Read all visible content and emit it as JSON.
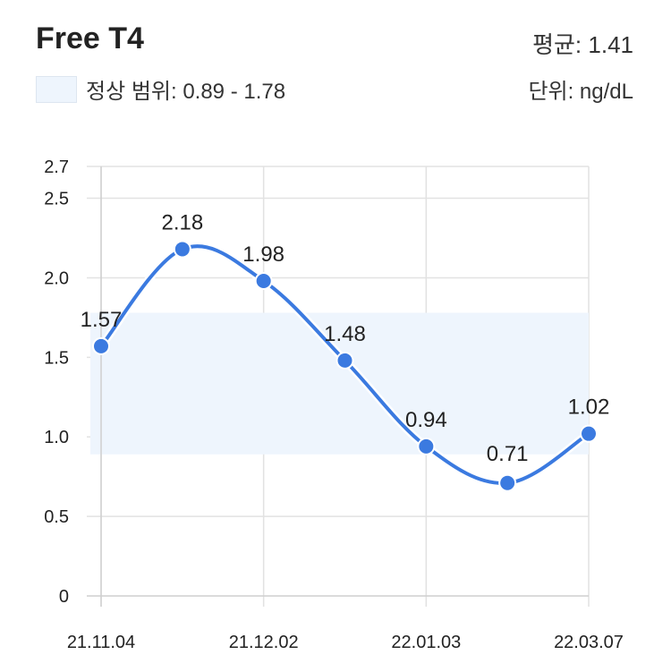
{
  "header": {
    "title": "Free T4",
    "legend_label": "정상 범위: 0.89 - 1.78",
    "average_label": "평균: 1.41",
    "unit_label": "단위: ng/dL"
  },
  "colors": {
    "line": "#3b7ae0",
    "point": "#3b7ae0",
    "normal_band": "#eef5fd",
    "grid": "#e2e2e2"
  },
  "chart_data": {
    "type": "line",
    "title": "Free T4",
    "xlabel": "",
    "ylabel": "",
    "ylim": [
      0,
      2.7
    ],
    "y_ticks": [
      0,
      0.5,
      1.0,
      1.5,
      2.0,
      2.5,
      2.7
    ],
    "y_tick_labels": [
      "0",
      "0.5",
      "1.0",
      "1.5",
      "2.0",
      "2.5",
      "2.7"
    ],
    "x_tick_labels": [
      "21.11.04",
      "21.12.02",
      "22.01.03",
      "22.03.07"
    ],
    "normal_range": [
      0.89,
      1.78
    ],
    "average": 1.41,
    "unit": "ng/dL",
    "grid": true,
    "series": [
      {
        "values": [
          1.57,
          2.18,
          1.98,
          1.48,
          0.94,
          0.71,
          1.02
        ],
        "labels": [
          "1.57",
          "2.18",
          "1.98",
          "1.48",
          "0.94",
          "0.71",
          "1.02"
        ]
      }
    ]
  }
}
